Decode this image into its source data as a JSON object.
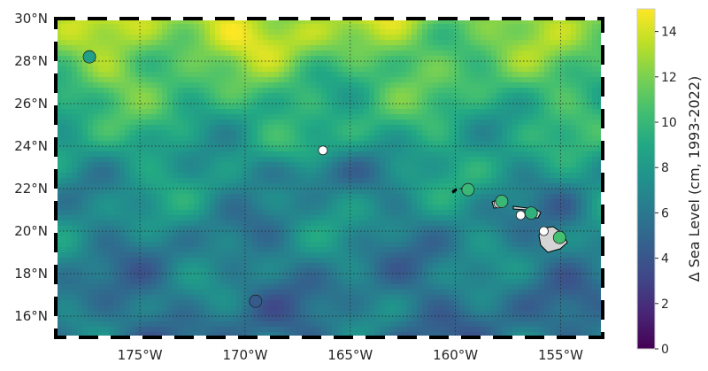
{
  "map": {
    "title": "",
    "extent": {
      "lon_min": -179,
      "lon_max": -153,
      "lat_min": 15,
      "lat_max": 30
    },
    "lon_ticks": [
      {
        "value": -175,
        "label": "175°W"
      },
      {
        "value": -170,
        "label": "170°W"
      },
      {
        "value": -165,
        "label": "165°W"
      },
      {
        "value": -160,
        "label": "160°W"
      },
      {
        "value": -155,
        "label": "155°W"
      }
    ],
    "lat_ticks": [
      {
        "value": 16,
        "label": "16°N"
      },
      {
        "value": 18,
        "label": "18°N"
      },
      {
        "value": 20,
        "label": "20°N"
      },
      {
        "value": 22,
        "label": "22°N"
      },
      {
        "value": 24,
        "label": "24°N"
      },
      {
        "value": 26,
        "label": "26°N"
      },
      {
        "value": 28,
        "label": "28°N"
      },
      {
        "value": 30,
        "label": "30°N"
      }
    ],
    "gridlines": true,
    "colormap": "viridis",
    "land_color": "#d4d4d4",
    "stations": [
      {
        "lon": -177.4,
        "lat": 28.2,
        "value": 8.5
      },
      {
        "lon": -169.5,
        "lat": 16.7,
        "value": 4.2
      },
      {
        "lon": -166.3,
        "lat": 23.8,
        "value": null
      },
      {
        "lon": -159.4,
        "lat": 21.95,
        "value": 10.0
      },
      {
        "lon": -157.95,
        "lat": 21.3,
        "value": null
      },
      {
        "lon": -157.8,
        "lat": 21.4,
        "value": 10.0
      },
      {
        "lon": -156.9,
        "lat": 20.75,
        "value": null
      },
      {
        "lon": -156.4,
        "lat": 20.85,
        "value": 9.6
      },
      {
        "lon": -155.8,
        "lat": 20.0,
        "value": null
      },
      {
        "lon": -155.05,
        "lat": 19.7,
        "value": 10.5
      }
    ]
  },
  "colorbar": {
    "label": "Δ Sea Level (cm, 1993-2022)",
    "min": 0,
    "max": 15,
    "ticks": [
      {
        "value": 0,
        "label": "0"
      },
      {
        "value": 2,
        "label": "2"
      },
      {
        "value": 4,
        "label": "4"
      },
      {
        "value": 6,
        "label": "6"
      },
      {
        "value": 8,
        "label": "8"
      },
      {
        "value": 10,
        "label": "10"
      },
      {
        "value": 12,
        "label": "12"
      },
      {
        "value": 14,
        "label": "14"
      }
    ]
  }
}
